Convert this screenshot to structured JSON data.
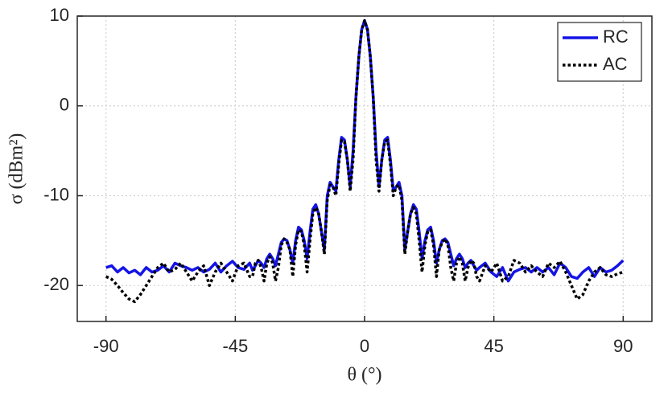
{
  "chart_data": {
    "type": "line",
    "xlabel": "θ (°)",
    "ylabel": "σ (dBm²)",
    "xlim": [
      -100,
      100
    ],
    "ylim": [
      -24,
      10
    ],
    "xticks": [
      -90,
      -45,
      0,
      45,
      90
    ],
    "yticks": [
      -20,
      -10,
      0,
      10
    ],
    "grid": true,
    "legend": "upper right",
    "x": [
      -90,
      -88,
      -86,
      -84,
      -82,
      -80,
      -78,
      -76,
      -74,
      -72,
      -70,
      -68,
      -66,
      -64,
      -62,
      -60,
      -58,
      -56,
      -54,
      -52,
      -50,
      -48,
      -46,
      -44,
      -42,
      -40,
      -39,
      -38,
      -37,
      -36,
      -35,
      -34,
      -33,
      -32,
      -31,
      -30,
      -29,
      -28,
      -27,
      -26,
      -25,
      -24,
      -23,
      -22,
      -21,
      -20,
      -19,
      -18,
      -17,
      -16,
      -15,
      -14,
      -13,
      -12,
      -11,
      -10,
      -9,
      -8,
      -7,
      -6,
      -5,
      -4,
      -3,
      -2,
      -1,
      0,
      1,
      2,
      3,
      4,
      5,
      6,
      7,
      8,
      9,
      10,
      11,
      12,
      13,
      14,
      15,
      16,
      17,
      18,
      19,
      20,
      21,
      22,
      23,
      24,
      25,
      26,
      27,
      28,
      29,
      30,
      31,
      32,
      33,
      34,
      35,
      36,
      37,
      38,
      39,
      40,
      42,
      44,
      46,
      48,
      50,
      52,
      54,
      56,
      58,
      60,
      62,
      64,
      66,
      68,
      70,
      72,
      74,
      76,
      78,
      80,
      82,
      84,
      86,
      88,
      90
    ],
    "series": [
      {
        "name": "RC",
        "color": "#1414e6",
        "style": "solid",
        "values": [
          -18,
          -17.8,
          -18.5,
          -18,
          -18.6,
          -18.3,
          -18.8,
          -18,
          -18.5,
          -18.3,
          -17.8,
          -18.5,
          -17.5,
          -17.8,
          -18,
          -18.3,
          -18,
          -18.5,
          -18.2,
          -17.5,
          -18.5,
          -17.8,
          -17.3,
          -18,
          -18.2,
          -17.5,
          -18.3,
          -17.8,
          -17.2,
          -17.5,
          -18,
          -17,
          -16.5,
          -17,
          -17.8,
          -16.5,
          -15.2,
          -14.8,
          -15,
          -16,
          -17.5,
          -15,
          -13.5,
          -13.8,
          -15,
          -17,
          -14,
          -11.5,
          -11,
          -12,
          -14,
          -16,
          -10,
          -8.5,
          -9,
          -9.5,
          -6,
          -3.5,
          -3.8,
          -6,
          -9,
          -5,
          1,
          5.5,
          8.5,
          9.5,
          8.5,
          5.5,
          1,
          -5,
          -9,
          -6,
          -3.8,
          -3.5,
          -6,
          -9.5,
          -9,
          -8.5,
          -10,
          -16,
          -14,
          -12,
          -11,
          -11.5,
          -14,
          -17,
          -15,
          -13.8,
          -13.5,
          -15,
          -17.5,
          -16,
          -15,
          -14.8,
          -15.2,
          -16.5,
          -17.8,
          -17,
          -16.5,
          -17,
          -18,
          -17.5,
          -17.2,
          -17.8,
          -18.3,
          -18,
          -17.5,
          -18.5,
          -19,
          -18,
          -19.5,
          -18.5,
          -18.2,
          -18,
          -18.5,
          -18,
          -18.5,
          -18,
          -18.8,
          -17.5,
          -18,
          -19,
          -19.2,
          -18.5,
          -18,
          -19,
          -18,
          -18.5,
          -18.3,
          -17.8,
          -17.2
        ]
      },
      {
        "name": "AC",
        "color": "#000000",
        "style": "dotted",
        "values": [
          -19,
          -19.3,
          -20,
          -20.8,
          -21.5,
          -21.8,
          -21,
          -20,
          -19,
          -18,
          -17.5,
          -18.5,
          -18.2,
          -17.5,
          -18.5,
          -19.5,
          -18.5,
          -17.8,
          -20,
          -18.5,
          -17.5,
          -18.5,
          -19.5,
          -17.8,
          -17.5,
          -19,
          -19,
          -17.5,
          -17.2,
          -18,
          -19.5,
          -17.5,
          -16.8,
          -17.5,
          -19.5,
          -18,
          -15.5,
          -14.8,
          -15.2,
          -16,
          -19,
          -15.5,
          -13.8,
          -14,
          -15.5,
          -18.5,
          -15,
          -12,
          -11.3,
          -12,
          -14,
          -16.5,
          -10.5,
          -8.8,
          -9,
          -10,
          -6.5,
          -3.8,
          -4,
          -6,
          -9.5,
          -6,
          1,
          5.5,
          8.5,
          9.5,
          8.5,
          5.5,
          1,
          -6,
          -9.5,
          -6,
          -4,
          -3.8,
          -6.5,
          -10,
          -9,
          -8.8,
          -10.5,
          -16.5,
          -14,
          -12,
          -11.3,
          -12,
          -15,
          -18.5,
          -15.5,
          -14,
          -13.8,
          -15.5,
          -19,
          -16,
          -15.2,
          -14.8,
          -15.5,
          -18,
          -19.5,
          -17.5,
          -16.8,
          -17.5,
          -19.5,
          -18,
          -17.2,
          -17.5,
          -19,
          -19.5,
          -17.8,
          -18.5,
          -17.5,
          -19.5,
          -19,
          -17.2,
          -17.5,
          -18.5,
          -17.8,
          -18.5,
          -19,
          -17.5,
          -18,
          -17.3,
          -18.5,
          -20,
          -21.5,
          -21,
          -19.5,
          -18.5,
          -18,
          -18.8,
          -19,
          -18.7,
          -18.5
        ]
      }
    ]
  }
}
